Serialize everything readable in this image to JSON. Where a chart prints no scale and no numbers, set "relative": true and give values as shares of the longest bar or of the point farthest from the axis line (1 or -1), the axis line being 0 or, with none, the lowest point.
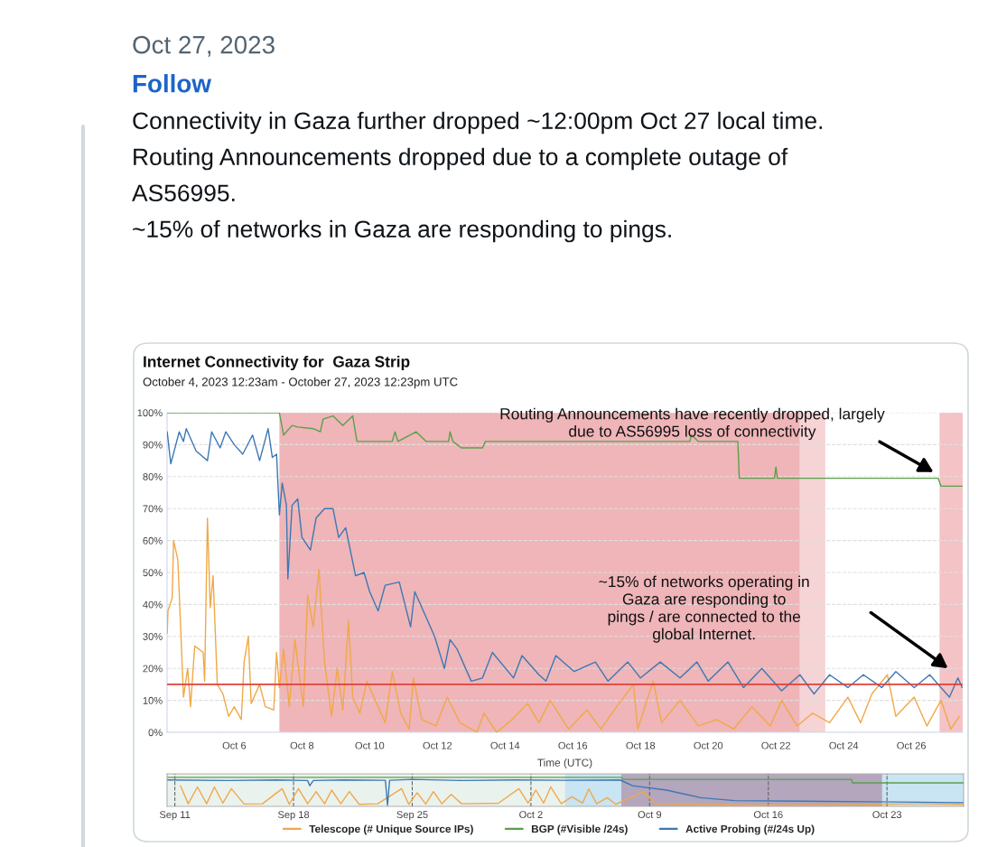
{
  "chart_data": [
    {
      "type": "line",
      "title": "Internet Connectivity for  Gaza Strip",
      "subtitle": "October 4, 2023 12:23am - October 27, 2023 12:23pm UTC",
      "xlabel": "Time (UTC)",
      "annotations": [
        "Oct 27, 2023",
        "Follow",
        "Connectivity in Gaza further dropped ~12:00pm Oct 27 local time.",
        "Routing Announcements dropped due to a complete outage of",
        "AS56995.",
        "~15% of networks in Gaza are responding to pings.",
        "Routing Announcements have recently dropped, largely\ndue to AS56995 loss of connectivity",
        "~15% of networks operating in\nGaza are responding to\npings / are connected to the\nglobal Internet."
      ],
      "series": [
        {
          "name": "Telescope (# Unique Source IPs)",
          "color": "#f0a848",
          "x": [
            "2023-10-04T00:30",
            "2023-10-04T01:00",
            "2023-10-04T04:00",
            "2023-10-04T05:00",
            "2023-10-04T08:00",
            "2023-10-04T10:00",
            "2023-10-04T12:00",
            "2023-10-04T15:00",
            "2023-10-04T17:00",
            "2023-10-04T20:00",
            "2023-10-05T02:00",
            "2023-10-05T03:00",
            "2023-10-05T05:00",
            "2023-10-05T07:00",
            "2023-10-05T09:00",
            "2023-10-05T12:00",
            "2023-10-05T16:00",
            "2023-10-05T20:00",
            "2023-10-06T00:00",
            "2023-10-06T05:00",
            "2023-10-06T07:00",
            "2023-10-06T10:00",
            "2023-10-06T12:00",
            "2023-10-06T18:00",
            "2023-10-06T22:00",
            "2023-10-07T04:00",
            "2023-10-07T06:00",
            "2023-10-07T08:00",
            "2023-10-07T11:00",
            "2023-10-07T15:00",
            "2023-10-07T19:00",
            "2023-10-08T01:00",
            "2023-10-08T04:00",
            "2023-10-08T08:00",
            "2023-10-08T12:00",
            "2023-10-08T16:00",
            "2023-10-08T21:00",
            "2023-10-09T01:00",
            "2023-10-09T05:00",
            "2023-10-09T09:00",
            "2023-10-09T12:00",
            "2023-10-09T17:00",
            "2023-10-09T22:00",
            "2023-10-10T05:00",
            "2023-10-10T11:00",
            "2023-10-10T16:00",
            "2023-10-10T22:00",
            "2023-10-11T04:00",
            "2023-10-11T07:00",
            "2023-10-11T13:00",
            "2023-10-11T23:00",
            "2023-10-12T07:00",
            "2023-10-12T16:00",
            "2023-10-13T04:00",
            "2023-10-13T09:00",
            "2023-10-13T18:00",
            "2023-10-14T05:00",
            "2023-10-14T16:00",
            "2023-10-15T00:00",
            "2023-10-15T08:00",
            "2023-10-15T21:00",
            "2023-10-16T10:00",
            "2023-10-16T20:00",
            "2023-10-17T07:00",
            "2023-10-17T19:00",
            "2023-10-17T22:00",
            "2023-10-18T09:00",
            "2023-10-18T15:00",
            "2023-10-19T04:00",
            "2023-10-19T17:00",
            "2023-10-20T06:00",
            "2023-10-20T18:00",
            "2023-10-21T07:00",
            "2023-10-21T20:00",
            "2023-10-22T04:00",
            "2023-10-22T15:00",
            "2023-10-23T02:00",
            "2023-10-23T14:00",
            "2023-10-24T03:00",
            "2023-10-24T12:00",
            "2023-10-24T20:00",
            "2023-10-25T07:00",
            "2023-10-25T13:00",
            "2023-10-26T02:00",
            "2023-10-26T11:00",
            "2023-10-26T21:00",
            "2023-10-27T04:00",
            "2023-10-27T10:00"
          ],
          "values": [
            31,
            38,
            42,
            60,
            54,
            33,
            11,
            20,
            8,
            27,
            25,
            16,
            67,
            39,
            49,
            15,
            12,
            5,
            8,
            4,
            22,
            30,
            9,
            15,
            8,
            7,
            25,
            14,
            26,
            8,
            29,
            8,
            43,
            33,
            51,
            22,
            5,
            20,
            7,
            35,
            11,
            6,
            16,
            9,
            3,
            19,
            6,
            1,
            17,
            4,
            2,
            11,
            3,
            0,
            6,
            0,
            4,
            9,
            3,
            10,
            1,
            7,
            1,
            8,
            15,
            1,
            16,
            3,
            10,
            2,
            4,
            1,
            8,
            2,
            10,
            2,
            6,
            3,
            11,
            3,
            12,
            18,
            5,
            11,
            2,
            10,
            1,
            5
          ]
        },
        {
          "name": "BGP (#Visible /24s)",
          "color": "#5aa04a",
          "x": [
            "2023-10-04T00:23",
            "2023-10-07T08:00",
            "2023-10-07T11:00",
            "2023-10-07T17:00",
            "2023-10-07T21:00",
            "2023-10-08T08:00",
            "2023-10-08T13:00",
            "2023-10-08T15:00",
            "2023-10-08T22:00",
            "2023-10-09T05:00",
            "2023-10-09T12:00",
            "2023-10-09T15:00",
            "2023-10-10T16:00",
            "2023-10-10T18:00",
            "2023-10-10T20:00",
            "2023-10-11T09:00",
            "2023-10-11T16:00",
            "2023-10-12T08:00",
            "2023-10-12T09:00",
            "2023-10-12T11:00",
            "2023-10-12T17:00",
            "2023-10-13T08:00",
            "2023-10-13T10:00",
            "2023-10-19T11:00",
            "2023-10-19T12:00",
            "2023-10-19T17:00",
            "2023-10-20T21:00",
            "2023-10-20T22:00",
            "2023-10-21T23:00",
            "2023-10-22T00:00",
            "2023-10-22T01:00",
            "2023-10-26T19:00",
            "2023-10-26T21:00",
            "2023-10-27T12:00"
          ],
          "values": [
            100,
            100,
            93,
            96,
            95.5,
            95,
            94,
            98,
            99,
            96,
            99,
            91,
            91,
            94,
            91,
            94,
            91,
            91,
            94,
            91,
            89,
            89,
            91,
            91,
            93,
            91,
            91,
            79.5,
            79.5,
            83,
            79.5,
            79.5,
            77,
            77
          ]
        },
        {
          "name": "Active Probing (#/24s Up)",
          "color": "#3c78b4",
          "x": [
            "2023-10-04T00:30",
            "2023-10-04T03:00",
            "2023-10-04T09:00",
            "2023-10-04T12:00",
            "2023-10-04T14:00",
            "2023-10-04T21:00",
            "2023-10-05T05:00",
            "2023-10-05T08:00",
            "2023-10-05T14:00",
            "2023-10-05T18:00",
            "2023-10-06T00:00",
            "2023-10-06T06:00",
            "2023-10-06T13:00",
            "2023-10-06T18:00",
            "2023-10-07T00:00",
            "2023-10-07T03:00",
            "2023-10-07T06:00",
            "2023-10-07T08:00",
            "2023-10-07T10:00",
            "2023-10-07T13:00",
            "2023-10-07T14:00",
            "2023-10-07T17:00",
            "2023-10-07T21:00",
            "2023-10-08T00:00",
            "2023-10-08T06:00",
            "2023-10-08T10:00",
            "2023-10-08T16:00",
            "2023-10-08T22:00",
            "2023-10-09T02:00",
            "2023-10-09T07:00",
            "2023-10-09T14:00",
            "2023-10-09T20:00",
            "2023-10-10T00:00",
            "2023-10-10T06:00",
            "2023-10-10T11:00",
            "2023-10-10T21:00",
            "2023-10-11T05:00",
            "2023-10-11T08:00",
            "2023-10-11T16:00",
            "2023-10-11T22:00",
            "2023-10-12T05:00",
            "2023-10-12T09:00",
            "2023-10-12T14:00",
            "2023-10-13T00:00",
            "2023-10-13T08:00",
            "2023-10-13T15:00",
            "2023-10-14T06:00",
            "2023-10-14T12:00",
            "2023-10-15T00:00",
            "2023-10-15T05:00",
            "2023-10-15T12:00",
            "2023-10-16T01:00",
            "2023-10-16T16:00",
            "2023-10-17T01:00",
            "2023-10-17T15:00",
            "2023-10-18T00:00",
            "2023-10-18T14:00",
            "2023-10-19T04:00",
            "2023-10-19T16:00",
            "2023-10-20T00:00",
            "2023-10-20T14:00",
            "2023-10-21T01:00",
            "2023-10-21T14:00",
            "2023-10-22T04:00",
            "2023-10-22T17:00",
            "2023-10-23T03:00",
            "2023-10-23T14:00",
            "2023-10-24T03:00",
            "2023-10-24T14:00",
            "2023-10-25T03:00",
            "2023-10-25T13:00",
            "2023-10-26T02:00",
            "2023-10-26T13:00",
            "2023-10-27T03:00",
            "2023-10-27T09:00",
            "2023-10-27T12:00"
          ],
          "values": [
            94,
            84,
            94,
            91,
            95,
            88,
            85,
            94,
            89,
            94,
            90,
            87,
            93,
            85,
            95,
            86,
            87,
            68,
            78,
            71,
            48,
            71,
            73,
            61,
            57,
            67,
            70,
            70,
            61,
            64,
            49,
            50,
            44,
            38,
            46,
            47,
            33,
            44,
            36,
            30,
            20,
            29,
            26,
            16,
            17,
            25,
            17,
            24,
            18,
            16,
            24,
            19,
            22,
            16,
            22,
            17,
            22,
            17,
            22,
            16,
            22,
            14,
            20,
            13,
            18,
            12,
            18,
            14,
            18,
            14,
            19,
            14,
            18,
            11,
            17,
            14
          ]
        }
      ],
      "xlim": [
        "2023-10-04T00:23",
        "2023-10-27T12:23"
      ],
      "xticks": [
        {
          "value": "2023-10-06",
          "label": "Oct 6"
        },
        {
          "value": "2023-10-08",
          "label": "Oct 8"
        },
        {
          "value": "2023-10-10",
          "label": "Oct 10"
        },
        {
          "value": "2023-10-12",
          "label": "Oct 12"
        },
        {
          "value": "2023-10-14",
          "label": "Oct 14"
        },
        {
          "value": "2023-10-16",
          "label": "Oct 16"
        },
        {
          "value": "2023-10-18",
          "label": "Oct 18"
        },
        {
          "value": "2023-10-20",
          "label": "Oct 20"
        },
        {
          "value": "2023-10-22",
          "label": "Oct 22"
        },
        {
          "value": "2023-10-24",
          "label": "Oct 24"
        },
        {
          "value": "2023-10-26",
          "label": "Oct 26"
        }
      ],
      "ylim": [
        0,
        100
      ],
      "yticks": [
        {
          "value": 0,
          "label": "0%"
        },
        {
          "value": 10,
          "label": "10%"
        },
        {
          "value": 20,
          "label": "20%"
        },
        {
          "value": 30,
          "label": "30%"
        },
        {
          "value": 40,
          "label": "40%"
        },
        {
          "value": 50,
          "label": "50%"
        },
        {
          "value": 60,
          "label": "60%"
        },
        {
          "value": 70,
          "label": "70%"
        },
        {
          "value": 80,
          "label": "80%"
        },
        {
          "value": 90,
          "label": "90%"
        },
        {
          "value": 100,
          "label": "100%"
        }
      ],
      "grid": "y",
      "legend": "bottom",
      "ref_lines": [
        {
          "axis": "y",
          "value": 15,
          "color": "#e0403a"
        }
      ],
      "bands": [
        {
          "axis": "x",
          "from": "2023-10-07T08:00",
          "to": "2023-10-22T17:00",
          "color": "#efb5b8"
        },
        {
          "axis": "x",
          "from": "2023-10-22T17:00",
          "to": "2023-10-23T11:00",
          "color": "#f6d3d5"
        },
        {
          "axis": "x",
          "from": "2023-10-26T20:00",
          "to": "2023-10-27T12:23",
          "color": "#f3c3c6"
        }
      ]
    },
    {
      "type": "line",
      "relative": true,
      "tick_labels": "x",
      "grid": "x",
      "series": [
        {
          "color": "#f0a848",
          "x": [
            "2023-09-11T08:00",
            "2023-09-11T19:00",
            "2023-09-12T08:00",
            "2023-09-12T21:00",
            "2023-09-13T08:00",
            "2023-09-13T20:00",
            "2023-09-14T08:00",
            "2023-09-15T02:00",
            "2023-09-16T04:00",
            "2023-09-17T08:00",
            "2023-09-17T18:00",
            "2023-09-18T07:00",
            "2023-09-18T20:00",
            "2023-09-19T08:00",
            "2023-09-19T20:00",
            "2023-09-20T06:00",
            "2023-09-20T19:00",
            "2023-09-21T07:00",
            "2023-09-21T21:00",
            "2023-09-22T23:00",
            "2023-09-24T09:00",
            "2023-09-24T19:00",
            "2023-09-25T07:00",
            "2023-09-25T19:00",
            "2023-09-26T06:00",
            "2023-09-26T18:00",
            "2023-09-27T07:00",
            "2023-09-27T22:00",
            "2023-09-30T02:00",
            "2023-10-01T07:00",
            "2023-10-01T20:00",
            "2023-10-02T07:00",
            "2023-10-02T18:00",
            "2023-10-03T04:00",
            "2023-10-03T19:00",
            "2023-10-04T10:00",
            "2023-10-05T01:00",
            "2023-10-05T10:00",
            "2023-10-05T21:00",
            "2023-10-06T12:00",
            "2023-10-07T00:00",
            "2023-10-08T15:00",
            "2023-10-09T08:00",
            "2023-10-15T05:00",
            "2023-10-20T13:00",
            "2023-10-25T00:00",
            "2023-10-27T12:00"
          ],
          "values": [
            0.71,
            0.09,
            0.67,
            0.09,
            0.67,
            0.11,
            0.61,
            0.08,
            0.09,
            0.61,
            0.07,
            0.61,
            0.09,
            0.51,
            0.09,
            0.56,
            0.09,
            0.51,
            0.07,
            0.09,
            0.61,
            0.07,
            0.47,
            0.08,
            0.51,
            0.09,
            0.41,
            0.09,
            0.11,
            0.61,
            0.11,
            0.56,
            0.11,
            0.67,
            0.09,
            0.33,
            0.11,
            0.6,
            0.09,
            0.3,
            0.07,
            0.5,
            0.09,
            0.04,
            0.06,
            0.09,
            0.07
          ]
        },
        {
          "color": "#5aa04a",
          "x": [
            "2023-09-10T14:00",
            "2023-10-07T08:00",
            "2023-10-07T10:00",
            "2023-10-20T22:00",
            "2023-10-20T23:00",
            "2023-10-27T12:00"
          ],
          "values": [
            1,
            1,
            0.93,
            0.93,
            0.81,
            0.81
          ]
        },
        {
          "color": "#3c78b4",
          "x": [
            "2023-09-10T14:00",
            "2023-09-14T00:00",
            "2023-09-17T00:00",
            "2023-09-18T20:00",
            "2023-09-18T23:00",
            "2023-09-19T04:00",
            "2023-09-21T00:00",
            "2023-09-23T10:00",
            "2023-09-23T13:00",
            "2023-09-23T16:00",
            "2023-09-25T00:00",
            "2023-09-28T00:00",
            "2023-10-01T00:00",
            "2023-10-04T00:00",
            "2023-10-07T06:00",
            "2023-10-08T00:00",
            "2023-10-10T00:00",
            "2023-10-12T00:00",
            "2023-10-14T00:00",
            "2023-10-18T00:00",
            "2023-10-22T00:00",
            "2023-10-27T12:00"
          ],
          "values": [
            0.91,
            0.89,
            0.91,
            0.89,
            0.71,
            0.89,
            0.91,
            0.9,
            0.04,
            0.9,
            0.93,
            0.89,
            0.91,
            0.9,
            0.91,
            0.71,
            0.56,
            0.3,
            0.2,
            0.18,
            0.16,
            0.13
          ]
        }
      ],
      "xlim": [
        "2023-09-10T13:00",
        "2023-10-27T12:23"
      ],
      "xticks": [
        {
          "value": "2023-09-11",
          "label": "Sep 11"
        },
        {
          "value": "2023-09-18",
          "label": "Sep 18"
        },
        {
          "value": "2023-09-25",
          "label": "Sep 25"
        },
        {
          "value": "2023-10-02",
          "label": "Oct 2"
        },
        {
          "value": "2023-10-09",
          "label": "Oct 9"
        },
        {
          "value": "2023-10-16",
          "label": "Oct 16"
        },
        {
          "value": "2023-10-23",
          "label": "Oct 23"
        }
      ],
      "bands": [
        {
          "axis": "x",
          "from": "2023-10-04T00:23",
          "to": "2023-10-27T12:23",
          "color": "#c9e4f3"
        },
        {
          "axis": "x",
          "from": "2023-10-07T08:00",
          "to": "2023-10-22T17:00",
          "color": "#b3a6bd"
        }
      ]
    }
  ]
}
